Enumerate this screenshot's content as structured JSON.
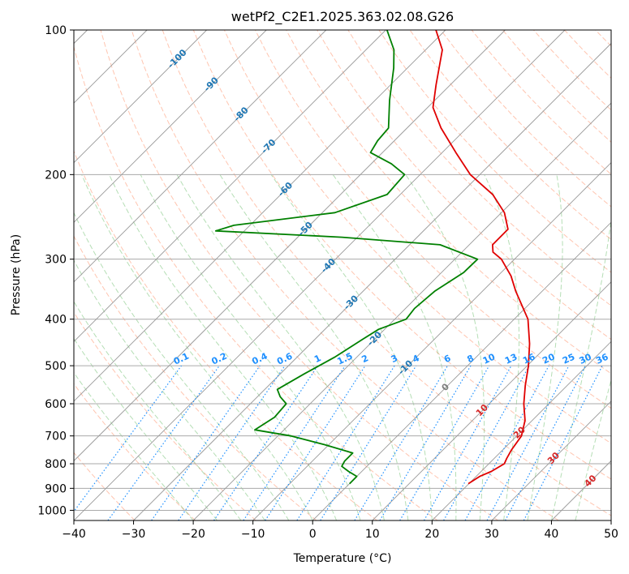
{
  "chart_data": {
    "type": "skew-t",
    "title": "wetPf2_C2E1.2025.363.02.08.G26",
    "xlabel": "Temperature (°C)",
    "ylabel": "Pressure (hPa)",
    "xlim": [
      -40,
      50
    ],
    "ylim": [
      1050,
      100
    ],
    "x_ticks": [
      -40,
      -30,
      -20,
      -10,
      0,
      10,
      20,
      30,
      40,
      50
    ],
    "x_tick_labels": [
      "−40",
      "−30",
      "−20",
      "−10",
      "0",
      "10",
      "20",
      "30",
      "40",
      "50"
    ],
    "y_ticks": [
      100,
      200,
      300,
      400,
      500,
      600,
      700,
      800,
      900,
      1000
    ],
    "y_tick_labels": [
      "100",
      "200",
      "300",
      "400",
      "500",
      "600",
      "700",
      "800",
      "900",
      "1000"
    ],
    "isotherm_labels": {
      "values": [
        -100,
        -90,
        -80,
        -70,
        -60,
        -50,
        -40,
        -30,
        -20,
        -10,
        0,
        10,
        20,
        30,
        40
      ],
      "labels": [
        "-100",
        "-90",
        "-80",
        "-70",
        "-60",
        "-50",
        "-40",
        "-30",
        "-20",
        "-10",
        "0",
        "10",
        "20",
        "30",
        "40"
      ]
    },
    "mixing_ratio_labels": {
      "values": [
        0.1,
        0.2,
        0.4,
        0.6,
        1,
        1.5,
        2,
        3,
        4,
        6,
        8,
        10,
        13,
        16,
        20,
        25,
        30,
        36
      ],
      "labels": [
        "0.1",
        "0.2",
        "0.4",
        "0.6",
        "1",
        "1.5",
        "2",
        "3",
        "4",
        "6",
        "8",
        "10",
        "13",
        "16",
        "20",
        "25",
        "30",
        "36"
      ]
    },
    "series": [
      {
        "name": "temperature",
        "color": "#e00000",
        "points": [
          {
            "p": 880,
            "t": 19.9
          },
          {
            "p": 850,
            "t": 20.6
          },
          {
            "p": 830,
            "t": 21.7
          },
          {
            "p": 800,
            "t": 22.6
          },
          {
            "p": 780,
            "t": 22.1
          },
          {
            "p": 750,
            "t": 21.5
          },
          {
            "p": 700,
            "t": 20.8
          },
          {
            "p": 650,
            "t": 18.8
          },
          {
            "p": 600,
            "t": 15.8
          },
          {
            "p": 550,
            "t": 13.0
          },
          {
            "p": 500,
            "t": 10.2
          },
          {
            "p": 450,
            "t": 6.7
          },
          {
            "p": 400,
            "t": 2.3
          },
          {
            "p": 350,
            "t": -4.4
          },
          {
            "p": 325,
            "t": -7.8
          },
          {
            "p": 300,
            "t": -12.2
          },
          {
            "p": 290,
            "t": -14.8
          },
          {
            "p": 280,
            "t": -16.1
          },
          {
            "p": 260,
            "t": -16.1
          },
          {
            "p": 240,
            "t": -19.5
          },
          {
            "p": 220,
            "t": -24.5
          },
          {
            "p": 200,
            "t": -31.6
          },
          {
            "p": 180,
            "t": -37.7
          },
          {
            "p": 160,
            "t": -44.3
          },
          {
            "p": 145,
            "t": -49.1
          },
          {
            "p": 130,
            "t": -52.4
          },
          {
            "p": 120,
            "t": -54.7
          },
          {
            "p": 110,
            "t": -57.2
          },
          {
            "p": 100,
            "t": -61.6
          }
        ]
      },
      {
        "name": "dewpoint",
        "color": "#008000",
        "points": [
          {
            "p": 880,
            "t": 0.0
          },
          {
            "p": 850,
            "t": 0.0
          },
          {
            "p": 830,
            "t": -2.2
          },
          {
            "p": 810,
            "t": -4.2
          },
          {
            "p": 790,
            "t": -4.6
          },
          {
            "p": 760,
            "t": -4.6
          },
          {
            "p": 730,
            "t": -10.7
          },
          {
            "p": 700,
            "t": -17.8
          },
          {
            "p": 680,
            "t": -24.9
          },
          {
            "p": 640,
            "t": -23.7
          },
          {
            "p": 600,
            "t": -24.0
          },
          {
            "p": 580,
            "t": -26.2
          },
          {
            "p": 560,
            "t": -27.9
          },
          {
            "p": 520,
            "t": -26.0
          },
          {
            "p": 480,
            "t": -23.7
          },
          {
            "p": 440,
            "t": -22.0
          },
          {
            "p": 420,
            "t": -21.0
          },
          {
            "p": 400,
            "t": -18.1
          },
          {
            "p": 380,
            "t": -18.5
          },
          {
            "p": 350,
            "t": -18.0
          },
          {
            "p": 320,
            "t": -16.3
          },
          {
            "p": 300,
            "t": -16.2
          },
          {
            "p": 280,
            "t": -24.9
          },
          {
            "p": 270,
            "t": -42.6
          },
          {
            "p": 262,
            "t": -64.8
          },
          {
            "p": 255,
            "t": -62.7
          },
          {
            "p": 240,
            "t": -47.9
          },
          {
            "p": 220,
            "t": -42.2
          },
          {
            "p": 200,
            "t": -42.6
          },
          {
            "p": 190,
            "t": -46.6
          },
          {
            "p": 180,
            "t": -52.0
          },
          {
            "p": 170,
            "t": -52.8
          },
          {
            "p": 160,
            "t": -53.1
          },
          {
            "p": 140,
            "t": -57.6
          },
          {
            "p": 120,
            "t": -62.3
          },
          {
            "p": 110,
            "t": -65.3
          },
          {
            "p": 100,
            "t": -69.8
          }
        ]
      }
    ]
  }
}
